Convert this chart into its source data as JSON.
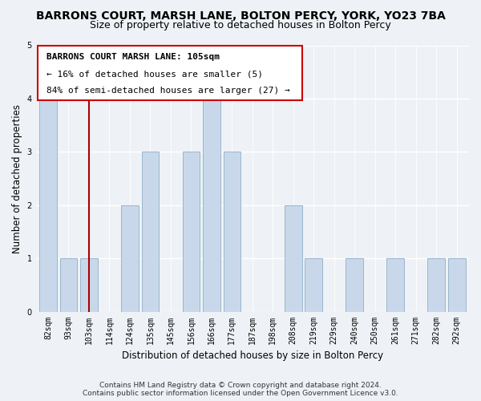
{
  "title": "BARRONS COURT, MARSH LANE, BOLTON PERCY, YORK, YO23 7BA",
  "subtitle": "Size of property relative to detached houses in Bolton Percy",
  "xlabel": "Distribution of detached houses by size in Bolton Percy",
  "ylabel": "Number of detached properties",
  "categories": [
    "82sqm",
    "93sqm",
    "103sqm",
    "114sqm",
    "124sqm",
    "135sqm",
    "145sqm",
    "156sqm",
    "166sqm",
    "177sqm",
    "187sqm",
    "198sqm",
    "208sqm",
    "219sqm",
    "229sqm",
    "240sqm",
    "250sqm",
    "261sqm",
    "271sqm",
    "282sqm",
    "292sqm"
  ],
  "values": [
    4,
    1,
    1,
    0,
    2,
    3,
    0,
    3,
    4,
    3,
    0,
    0,
    2,
    1,
    0,
    1,
    0,
    1,
    0,
    1,
    1
  ],
  "bar_color": "#c8d8ea",
  "bar_edge_color": "#9ab5cc",
  "vline_x_index": 2,
  "vline_color": "#aa0000",
  "ylim": [
    0,
    5
  ],
  "yticks": [
    0,
    1,
    2,
    3,
    4,
    5
  ],
  "annotation_title": "BARRONS COURT MARSH LANE: 105sqm",
  "annotation_line1": "← 16% of detached houses are smaller (5)",
  "annotation_line2": "84% of semi-detached houses are larger (27) →",
  "annotation_box_color": "#ffffff",
  "annotation_box_edge": "#cc0000",
  "footer_line1": "Contains HM Land Registry data © Crown copyright and database right 2024.",
  "footer_line2": "Contains public sector information licensed under the Open Government Licence v3.0.",
  "background_color": "#eef2f6",
  "plot_background": "#eef2f6",
  "title_fontsize": 10,
  "subtitle_fontsize": 9,
  "axis_label_fontsize": 8.5,
  "tick_fontsize": 7,
  "annotation_fontsize": 8,
  "footer_fontsize": 6.5
}
